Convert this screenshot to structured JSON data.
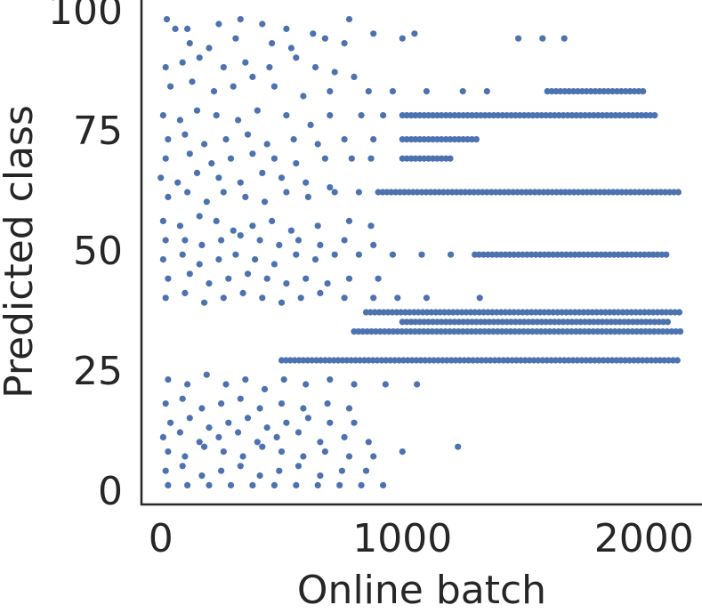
{
  "chart_data": {
    "type": "scatter",
    "title": "",
    "xlabel": "Online batch",
    "ylabel": "Predicted class",
    "xlim": [
      -80,
      2240
    ],
    "ylim": [
      -3,
      102
    ],
    "xticks": [
      {
        "value": 0,
        "label": "0"
      },
      {
        "value": 1000,
        "label": "1000"
      },
      {
        "value": 2000,
        "label": "2000"
      }
    ],
    "yticks": [
      {
        "value": 0,
        "label": "0"
      },
      {
        "value": 25,
        "label": "25"
      },
      {
        "value": 50,
        "label": "50"
      },
      {
        "value": 75,
        "label": "75"
      },
      {
        "value": 100,
        "label": "100"
      }
    ],
    "grid": false,
    "legend": "none",
    "marker_color": "#4c72b0",
    "dense_rows": [
      {
        "y": 37,
        "x_start": 850,
        "x_end": 2150
      },
      {
        "y": 33,
        "x_start": 800,
        "x_end": 2150
      },
      {
        "y": 27,
        "x_start": 500,
        "x_end": 2150
      },
      {
        "y": 62,
        "x_start": 900,
        "x_end": 2150
      },
      {
        "y": 78,
        "x_start": 1000,
        "x_end": 2050
      },
      {
        "y": 35,
        "x_start": 1000,
        "x_end": 2100
      },
      {
        "y": 83,
        "x_start": 1600,
        "x_end": 2000
      },
      {
        "y": 73,
        "x_start": 1000,
        "x_end": 1320
      },
      {
        "y": 69,
        "x_start": 1000,
        "x_end": 1200
      },
      {
        "y": 49,
        "x_start": 1300,
        "x_end": 2100
      }
    ],
    "sparse_points": [
      [
        25,
        98
      ],
      [
        60,
        96
      ],
      [
        110,
        96
      ],
      [
        240,
        97
      ],
      [
        330,
        98
      ],
      [
        420,
        97
      ],
      [
        520,
        96
      ],
      [
        630,
        95
      ],
      [
        780,
        98
      ],
      [
        880,
        95
      ],
      [
        1050,
        95
      ],
      [
        120,
        93
      ],
      [
        200,
        92
      ],
      [
        310,
        94
      ],
      [
        460,
        93
      ],
      [
        540,
        92
      ],
      [
        680,
        94
      ],
      [
        760,
        93
      ],
      [
        1000,
        94
      ],
      [
        1480,
        94
      ],
      [
        1580,
        94
      ],
      [
        1670,
        94
      ],
      [
        20,
        88
      ],
      [
        90,
        89
      ],
      [
        160,
        90
      ],
      [
        260,
        88
      ],
      [
        350,
        89
      ],
      [
        450,
        88
      ],
      [
        560,
        90
      ],
      [
        640,
        88
      ],
      [
        720,
        87
      ],
      [
        800,
        86
      ],
      [
        40,
        84
      ],
      [
        130,
        85
      ],
      [
        220,
        83
      ],
      [
        300,
        84
      ],
      [
        380,
        86
      ],
      [
        470,
        84
      ],
      [
        590,
        82
      ],
      [
        700,
        83
      ],
      [
        860,
        83
      ],
      [
        960,
        83
      ],
      [
        1100,
        83
      ],
      [
        1250,
        83
      ],
      [
        1350,
        83
      ],
      [
        10,
        78
      ],
      [
        80,
        77
      ],
      [
        150,
        79
      ],
      [
        230,
        78
      ],
      [
        320,
        77
      ],
      [
        400,
        79
      ],
      [
        520,
        78
      ],
      [
        620,
        76
      ],
      [
        700,
        78
      ],
      [
        830,
        78
      ],
      [
        920,
        78
      ],
      [
        30,
        73
      ],
      [
        100,
        74
      ],
      [
        180,
        72
      ],
      [
        270,
        73
      ],
      [
        360,
        74
      ],
      [
        440,
        72
      ],
      [
        550,
        73
      ],
      [
        650,
        72
      ],
      [
        760,
        73
      ],
      [
        880,
        73
      ],
      [
        20,
        69
      ],
      [
        120,
        70
      ],
      [
        210,
        68
      ],
      [
        290,
        69
      ],
      [
        380,
        70
      ],
      [
        470,
        69
      ],
      [
        560,
        68
      ],
      [
        680,
        69
      ],
      [
        790,
        69
      ],
      [
        870,
        69
      ],
      [
        0,
        65
      ],
      [
        70,
        64
      ],
      [
        150,
        66
      ],
      [
        240,
        65
      ],
      [
        330,
        64
      ],
      [
        420,
        66
      ],
      [
        500,
        65
      ],
      [
        600,
        64
      ],
      [
        700,
        63
      ],
      [
        30,
        61
      ],
      [
        110,
        62
      ],
      [
        190,
        60
      ],
      [
        260,
        62
      ],
      [
        350,
        61
      ],
      [
        430,
        60
      ],
      [
        520,
        62
      ],
      [
        610,
        61
      ],
      [
        720,
        62
      ],
      [
        820,
        62
      ],
      [
        10,
        56
      ],
      [
        80,
        55
      ],
      [
        160,
        57
      ],
      [
        230,
        56
      ],
      [
        300,
        54
      ],
      [
        380,
        55
      ],
      [
        460,
        56
      ],
      [
        540,
        54
      ],
      [
        650,
        55
      ],
      [
        780,
        56
      ],
      [
        870,
        55
      ],
      [
        20,
        52
      ],
      [
        100,
        52
      ],
      [
        170,
        51
      ],
      [
        250,
        52
      ],
      [
        330,
        53
      ],
      [
        410,
        52
      ],
      [
        490,
        51
      ],
      [
        570,
        52
      ],
      [
        660,
        51
      ],
      [
        760,
        52
      ],
      [
        880,
        51
      ],
      [
        10,
        48
      ],
      [
        90,
        49
      ],
      [
        160,
        47
      ],
      [
        240,
        48
      ],
      [
        310,
        49
      ],
      [
        390,
        48
      ],
      [
        470,
        47
      ],
      [
        560,
        49
      ],
      [
        640,
        48
      ],
      [
        720,
        49
      ],
      [
        820,
        49
      ],
      [
        960,
        49
      ],
      [
        1080,
        49
      ],
      [
        1200,
        49
      ],
      [
        30,
        44
      ],
      [
        120,
        45
      ],
      [
        200,
        43
      ],
      [
        280,
        44
      ],
      [
        360,
        45
      ],
      [
        440,
        44
      ],
      [
        520,
        43
      ],
      [
        600,
        44
      ],
      [
        690,
        43
      ],
      [
        780,
        44
      ],
      [
        900,
        44
      ],
      [
        20,
        40
      ],
      [
        100,
        41
      ],
      [
        180,
        39
      ],
      [
        260,
        40
      ],
      [
        340,
        41
      ],
      [
        420,
        40
      ],
      [
        500,
        39
      ],
      [
        580,
        40
      ],
      [
        660,
        41
      ],
      [
        760,
        40
      ],
      [
        880,
        40
      ],
      [
        980,
        40
      ],
      [
        1100,
        40
      ],
      [
        1320,
        40
      ],
      [
        30,
        23
      ],
      [
        110,
        22
      ],
      [
        190,
        24
      ],
      [
        270,
        22
      ],
      [
        350,
        23
      ],
      [
        430,
        21
      ],
      [
        510,
        23
      ],
      [
        600,
        22
      ],
      [
        700,
        23
      ],
      [
        800,
        22
      ],
      [
        930,
        22
      ],
      [
        1060,
        22
      ],
      [
        20,
        18
      ],
      [
        90,
        19
      ],
      [
        170,
        17
      ],
      [
        250,
        18
      ],
      [
        330,
        19
      ],
      [
        410,
        17
      ],
      [
        500,
        18
      ],
      [
        590,
        17
      ],
      [
        690,
        18
      ],
      [
        780,
        17
      ],
      [
        40,
        14
      ],
      [
        120,
        15
      ],
      [
        200,
        13
      ],
      [
        280,
        14
      ],
      [
        360,
        15
      ],
      [
        440,
        13
      ],
      [
        520,
        14
      ],
      [
        610,
        15
      ],
      [
        700,
        14
      ],
      [
        800,
        14
      ],
      [
        10,
        11
      ],
      [
        80,
        12
      ],
      [
        160,
        10
      ],
      [
        240,
        11
      ],
      [
        320,
        12
      ],
      [
        400,
        10
      ],
      [
        480,
        11
      ],
      [
        570,
        12
      ],
      [
        660,
        10
      ],
      [
        760,
        11
      ],
      [
        860,
        10
      ],
      [
        30,
        8
      ],
      [
        100,
        7
      ],
      [
        180,
        9
      ],
      [
        260,
        8
      ],
      [
        340,
        7
      ],
      [
        420,
        9
      ],
      [
        500,
        8
      ],
      [
        590,
        7
      ],
      [
        680,
        8
      ],
      [
        780,
        7
      ],
      [
        880,
        7
      ],
      [
        1000,
        8
      ],
      [
        1230,
        9
      ],
      [
        20,
        4
      ],
      [
        90,
        5
      ],
      [
        170,
        3
      ],
      [
        250,
        4
      ],
      [
        330,
        5
      ],
      [
        410,
        3
      ],
      [
        490,
        4
      ],
      [
        570,
        5
      ],
      [
        660,
        3
      ],
      [
        750,
        4
      ],
      [
        850,
        4
      ],
      [
        30,
        1
      ],
      [
        110,
        1
      ],
      [
        200,
        1
      ],
      [
        290,
        1
      ],
      [
        380,
        1
      ],
      [
        470,
        1
      ],
      [
        560,
        1
      ],
      [
        650,
        1
      ],
      [
        740,
        1
      ],
      [
        830,
        1
      ],
      [
        920,
        1
      ]
    ]
  }
}
